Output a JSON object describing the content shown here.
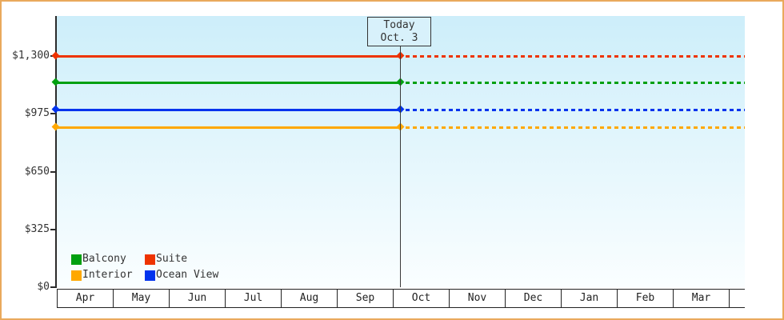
{
  "widget": {
    "frame_border_color": "#E9A95C",
    "background_color": "#FFFFFF",
    "axis_color": "#2b2b2b",
    "plot_gradient_top": "#CDEEFA",
    "plot_gradient_bottom": "#FAFEFF",
    "today_box_fill": "#D8F1FB"
  },
  "today_box": {
    "line1": "Today",
    "line2": "Oct. 3"
  },
  "chart_data": {
    "type": "line",
    "title": "",
    "xlabel": "",
    "ylabel": "",
    "x_categories": [
      "Apr",
      "May",
      "Jun",
      "Jul",
      "Aug",
      "Sep",
      "Oct",
      "Nov",
      "Dec",
      "Jan",
      "Feb",
      "Mar"
    ],
    "y_ticks": [
      {
        "label": "$0",
        "value": 0
      },
      {
        "label": "$325",
        "value": 325
      },
      {
        "label": "$650",
        "value": 650
      },
      {
        "label": "$975",
        "value": 975
      },
      {
        "label": "$1,300",
        "value": 1300
      }
    ],
    "ylim": [
      0,
      1530
    ],
    "grid": false,
    "today_marker": {
      "label_line1": "Today",
      "label_line2": "Oct. 3",
      "month": "Oct",
      "day": 3,
      "days_in_month": 31
    },
    "line_style_note": "solid before today, dashed projection after today, diamond markers at axis start and at today",
    "series": [
      {
        "name": "Suite",
        "color": "#EE3300",
        "value": 1300
      },
      {
        "name": "Balcony",
        "color": "#00A010",
        "value": 1150
      },
      {
        "name": "Ocean View",
        "color": "#0033EE",
        "value": 1000
      },
      {
        "name": "Interior",
        "color": "#FFA800",
        "value": 900
      }
    ],
    "legend": {
      "position": "bottom-left",
      "order": [
        "Balcony",
        "Suite",
        "Interior",
        "Ocean View"
      ]
    }
  }
}
